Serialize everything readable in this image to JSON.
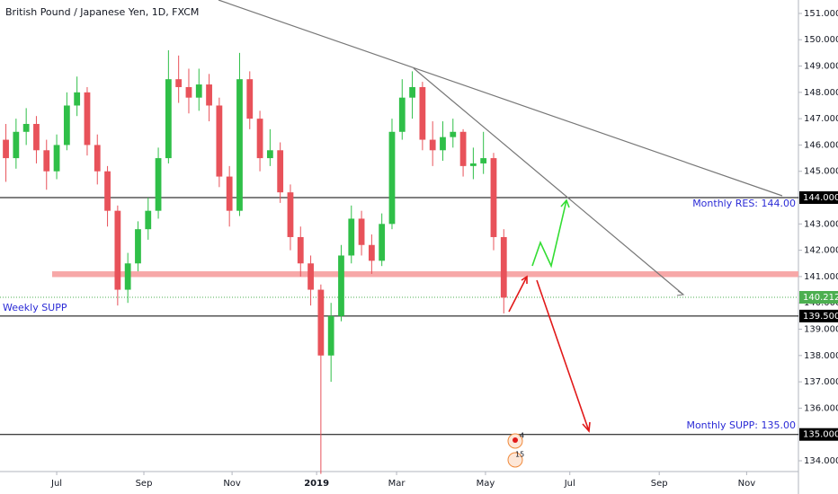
{
  "chart_data": {
    "type": "candlestick",
    "title": "British Pound / Japanese Yen, 1D, FXCM",
    "up_color": "#2fbf48",
    "down_color": "#e8525a",
    "x": [
      -5,
      -4,
      -3,
      -2,
      -1,
      0,
      1,
      2,
      3,
      4,
      5,
      6,
      7,
      8,
      9,
      10,
      11,
      12,
      13,
      14,
      15,
      16,
      17,
      18,
      19,
      20,
      21,
      22,
      23,
      24,
      25,
      26,
      27,
      28,
      29,
      30,
      31,
      32,
      33,
      34,
      35,
      36,
      37,
      38,
      39,
      40,
      41,
      42,
      43,
      44
    ],
    "open": [
      146.2,
      145.5,
      146.5,
      146.8,
      145.8,
      145.0,
      146.0,
      147.5,
      148.0,
      146.0,
      145.0,
      143.5,
      140.5,
      141.5,
      142.8,
      143.5,
      145.5,
      148.5,
      148.2,
      147.8,
      148.3,
      147.5,
      144.8,
      143.5,
      148.5,
      147.0,
      145.5,
      145.8,
      144.2,
      142.5,
      141.5,
      140.5,
      138.0,
      139.5,
      141.8,
      143.2,
      142.2,
      141.6,
      143.0,
      146.5,
      147.8,
      148.2,
      146.2,
      145.8,
      146.3,
      146.5,
      145.2,
      145.3,
      145.5,
      142.5
    ],
    "high": [
      146.8,
      147.0,
      147.4,
      147.1,
      146.2,
      146.4,
      148.0,
      148.6,
      148.2,
      146.4,
      145.2,
      143.7,
      141.9,
      143.1,
      144.0,
      145.9,
      149.6,
      149.4,
      148.9,
      148.9,
      148.7,
      147.8,
      145.2,
      149.5,
      148.8,
      147.3,
      146.6,
      146.1,
      144.5,
      142.9,
      141.8,
      140.7,
      140.0,
      142.2,
      143.7,
      143.5,
      142.6,
      143.4,
      147.0,
      148.5,
      148.8,
      148.4,
      146.9,
      146.9,
      147.0,
      146.6,
      145.9,
      146.5,
      145.7,
      142.8
    ],
    "low": [
      144.6,
      145.1,
      146.0,
      145.3,
      144.3,
      144.7,
      145.8,
      147.1,
      145.6,
      144.5,
      142.9,
      139.9,
      140.0,
      141.2,
      142.4,
      143.2,
      145.3,
      147.6,
      147.2,
      147.3,
      146.9,
      144.4,
      142.9,
      143.3,
      146.6,
      145.0,
      145.2,
      143.8,
      142.0,
      141.0,
      139.9,
      133.5,
      137.0,
      139.3,
      141.5,
      141.8,
      141.1,
      141.4,
      142.8,
      146.2,
      147.0,
      145.8,
      145.2,
      145.4,
      145.9,
      144.8,
      144.7,
      144.9,
      142.0,
      139.6
    ],
    "close": [
      145.5,
      146.5,
      146.8,
      145.8,
      145.0,
      146.0,
      147.5,
      148.0,
      146.0,
      145.0,
      143.5,
      140.5,
      141.5,
      142.8,
      143.5,
      145.5,
      148.5,
      148.2,
      147.8,
      148.3,
      147.5,
      144.8,
      143.5,
      148.5,
      147.0,
      145.5,
      145.8,
      144.2,
      142.5,
      141.5,
      140.5,
      138.0,
      139.5,
      141.8,
      143.2,
      142.2,
      141.6,
      143.0,
      146.5,
      147.8,
      148.2,
      146.2,
      145.8,
      146.3,
      146.5,
      145.2,
      145.3,
      145.5,
      142.5,
      140.2
    ],
    "xlim": [
      -5.58,
      73.0
    ],
    "xticks": [
      {
        "value": 0,
        "label": "Jul"
      },
      {
        "value": 8.58,
        "label": "Sep"
      },
      {
        "value": 17.26,
        "label": "Nov"
      },
      {
        "value": 25.58,
        "label": "2019"
      },
      {
        "value": 33.45,
        "label": "Mar"
      },
      {
        "value": 42.2,
        "label": "May"
      },
      {
        "value": 50.5,
        "label": "Jul"
      },
      {
        "value": 59.3,
        "label": "Sep"
      },
      {
        "value": 67.9,
        "label": "Nov"
      }
    ],
    "ylim": [
      133.59,
      151.51
    ],
    "yticks": [
      {
        "value": 134,
        "label": "134.000"
      },
      {
        "value": 135,
        "label": "135.000"
      },
      {
        "value": 136,
        "label": "136.000"
      },
      {
        "value": 137,
        "label": "137.000"
      },
      {
        "value": 138,
        "label": "138.000"
      },
      {
        "value": 139,
        "label": "139.000"
      },
      {
        "value": 140,
        "label": "140.000"
      },
      {
        "value": 141,
        "label": "141.000"
      },
      {
        "value": 142,
        "label": "142.000"
      },
      {
        "value": 143,
        "label": "143.000"
      },
      {
        "value": 144,
        "label": "144.000"
      },
      {
        "value": 145,
        "label": "145.000"
      },
      {
        "value": 146,
        "label": "146.000"
      },
      {
        "value": 147,
        "label": "147.000"
      },
      {
        "value": 148,
        "label": "148.000"
      },
      {
        "value": 149,
        "label": "149.000"
      },
      {
        "value": 150,
        "label": "150.000"
      },
      {
        "value": 151,
        "label": "151.000"
      }
    ],
    "grid": false,
    "price_lines": [
      {
        "value": 144,
        "label": "144.000",
        "color": "#000000"
      },
      {
        "value": 139.5,
        "label": "139.500",
        "color": "#000000"
      },
      {
        "value": 135,
        "label": "135.000",
        "color": "#000000"
      }
    ],
    "last_price": {
      "value": 140.212,
      "label": "140.212",
      "color": "#4caf50"
    },
    "resistance_zone": {
      "low": 140.98,
      "high": 141.2,
      "color": "#f7a8a8"
    },
    "annotations": [
      "Monthly RES: 144.00",
      "Weekly SUPP",
      "Monthly SUPP: 135.00"
    ],
    "events": [
      "4",
      "15"
    ]
  }
}
